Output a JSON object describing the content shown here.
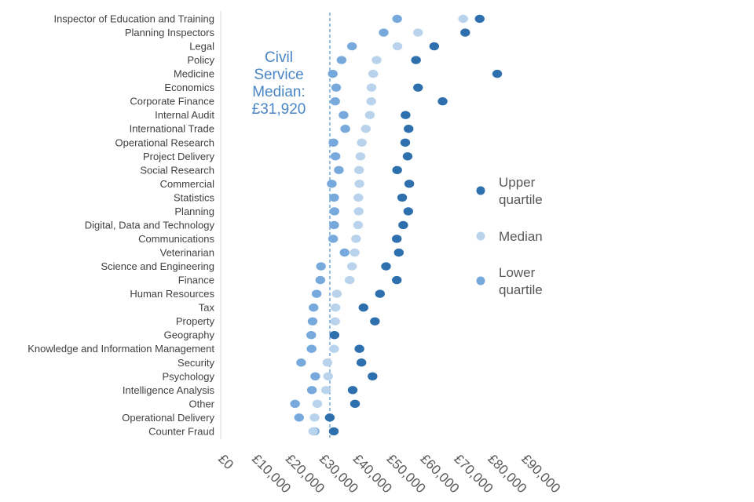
{
  "chart_data": {
    "type": "scatter",
    "orientation": "horizontal-dot-plot",
    "categories": [
      "Inspector of Education and Training",
      "Planning Inspectors",
      "Legal",
      "Policy",
      "Medicine",
      "Economics",
      "Corporate Finance",
      "Internal Audit",
      "International Trade",
      "Operational Research",
      "Project Delivery",
      "Social Research",
      "Commercial",
      "Statistics",
      "Planning",
      "Digital, Data and Technology",
      "Communications",
      "Veterinarian",
      "Science and Engineering",
      "Finance",
      "Human Resources",
      "Tax",
      "Property",
      "Geography",
      "Knowledge and Information Management",
      "Security",
      "Psychology",
      "Intelligence Analysis",
      "Other",
      "Operational Delivery",
      "Counter Fraud"
    ],
    "series": [
      {
        "name": "Upper quartile",
        "color": "#2e6fad",
        "values": [
          76400,
          72100,
          62900,
          57500,
          81600,
          58100,
          65400,
          54400,
          55300,
          54300,
          55000,
          51900,
          55500,
          53400,
          55200,
          53700,
          51800,
          52400,
          48600,
          51800,
          46800,
          41900,
          45300,
          33300,
          40700,
          41300,
          44600,
          38700,
          39400,
          31900,
          33100
        ]
      },
      {
        "name": "Median",
        "color": "#b9d3ec",
        "values": [
          71500,
          58100,
          52000,
          45800,
          44800,
          44300,
          44200,
          43800,
          42600,
          41400,
          41000,
          40600,
          40700,
          40400,
          40500,
          40300,
          39700,
          39300,
          38500,
          37800,
          34000,
          33600,
          33500,
          33200,
          33200,
          31200,
          31400,
          30800,
          28200,
          27400,
          27000
        ]
      },
      {
        "name": "Lower quartile",
        "color": "#77a9dc",
        "values": [
          51900,
          47900,
          38500,
          35400,
          32800,
          33800,
          33500,
          36000,
          36500,
          33000,
          33600,
          34600,
          32500,
          33200,
          33300,
          33200,
          32900,
          36300,
          29300,
          29100,
          28000,
          27100,
          26800,
          26400,
          26500,
          23400,
          27600,
          26600,
          21600,
          22800,
          27400
        ]
      }
    ],
    "xlim": [
      0,
      90000
    ],
    "xticks": [
      0,
      10000,
      20000,
      30000,
      40000,
      50000,
      60000,
      70000,
      80000,
      90000
    ],
    "xtick_labels": [
      "£0",
      "£10,000",
      "£20,000",
      "£30,000",
      "£40,000",
      "£50,000",
      "£60,000",
      "£70,000",
      "£80,000",
      "£90,000"
    ],
    "reference_line": {
      "value": 31920,
      "color": "#5b9bd5",
      "label_lines": [
        "Civil",
        "Service",
        "Median:",
        "£31,920"
      ]
    },
    "legend": {
      "placement": "right",
      "entries": [
        {
          "series": 0,
          "lines": [
            "Upper",
            "quartile"
          ]
        },
        {
          "series": 1,
          "lines": [
            "Median"
          ]
        },
        {
          "series": 2,
          "lines": [
            "Lower",
            "quartile"
          ]
        }
      ]
    },
    "title": "",
    "xlabel": "",
    "ylabel": "",
    "grid": false
  }
}
